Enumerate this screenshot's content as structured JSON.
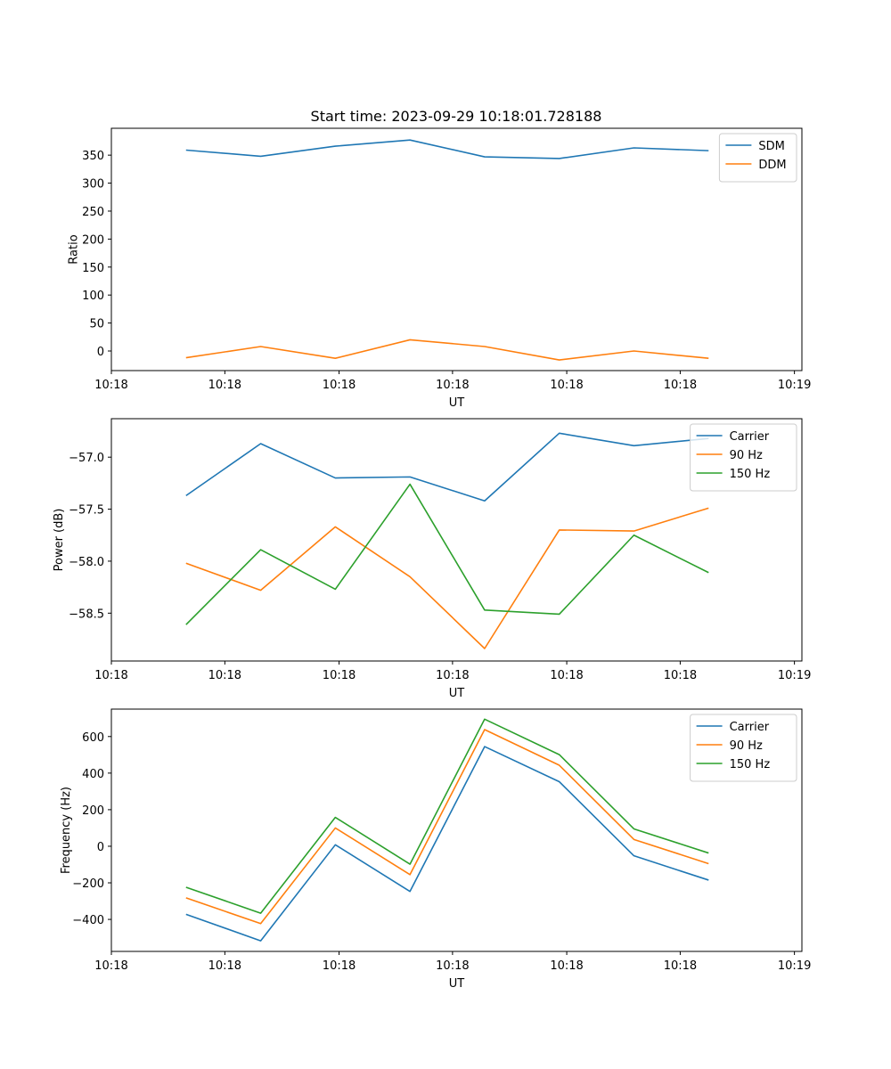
{
  "figure": {
    "title": "Start time: 2023-09-29 10:18:01.728188"
  },
  "colors": {
    "blue": "#1f77b4",
    "orange": "#ff7f0e",
    "green": "#2ca02c"
  },
  "chart_data": [
    {
      "type": "line",
      "title": "Start time: 2023-09-29 10:18:01.728188",
      "xlabel": "UT",
      "ylabel": "Ratio",
      "x": [
        1,
        2,
        3,
        4,
        5,
        6,
        7,
        8
      ],
      "xlim": [
        0,
        9.25
      ],
      "xticks": [
        0,
        1.52,
        3.05,
        4.57,
        6.1,
        7.62,
        9.15
      ],
      "xtick_labels": [
        "10:18",
        "10:18",
        "10:18",
        "10:18",
        "10:18",
        "10:18",
        "10:19"
      ],
      "ylim": [
        -35,
        398
      ],
      "yticks": [
        0,
        50,
        100,
        150,
        200,
        250,
        300,
        350
      ],
      "ytick_labels": [
        "0",
        "50",
        "100",
        "150",
        "200",
        "250",
        "300",
        "350"
      ],
      "legend_loc": "upper-right",
      "series": [
        {
          "name": "SDM",
          "color": "#1f77b4",
          "values": [
            359,
            348,
            366,
            377,
            347,
            344,
            363,
            358
          ]
        },
        {
          "name": "DDM",
          "color": "#ff7f0e",
          "values": [
            -12,
            8,
            -13,
            20,
            8,
            -16,
            0,
            -13
          ]
        }
      ]
    },
    {
      "type": "line",
      "title": "",
      "xlabel": "UT",
      "ylabel": "Power (dB)",
      "x": [
        1,
        2,
        3,
        4,
        5,
        6,
        7,
        8
      ],
      "xlim": [
        0,
        9.25
      ],
      "xticks": [
        0,
        1.52,
        3.05,
        4.57,
        6.1,
        7.62,
        9.15
      ],
      "xtick_labels": [
        "10:18",
        "10:18",
        "10:18",
        "10:18",
        "10:18",
        "10:18",
        "10:19"
      ],
      "ylim": [
        -58.96,
        -56.63
      ],
      "yticks": [
        -58.5,
        -58.0,
        -57.5,
        -57.0
      ],
      "ytick_labels": [
        "−58.5",
        "−58.0",
        "−57.5",
        "−57.0"
      ],
      "legend_loc": "upper-right",
      "series": [
        {
          "name": "Carrier",
          "color": "#1f77b4",
          "values": [
            -57.37,
            -56.87,
            -57.2,
            -57.19,
            -57.42,
            -56.77,
            -56.89,
            -56.82
          ]
        },
        {
          "name": "90 Hz",
          "color": "#ff7f0e",
          "values": [
            -58.02,
            -58.28,
            -57.67,
            -58.15,
            -58.84,
            -57.7,
            -57.71,
            -57.49
          ]
        },
        {
          "name": "150 Hz",
          "color": "#2ca02c",
          "values": [
            -58.61,
            -57.89,
            -58.27,
            -57.26,
            -58.47,
            -58.51,
            -57.75,
            -58.11
          ]
        }
      ]
    },
    {
      "type": "line",
      "title": "",
      "xlabel": "UT",
      "ylabel": "Frequency (Hz)",
      "x": [
        1,
        2,
        3,
        4,
        5,
        6,
        7,
        8
      ],
      "xlim": [
        0,
        9.25
      ],
      "xticks": [
        0,
        1.52,
        3.05,
        4.57,
        6.1,
        7.62,
        9.15
      ],
      "xtick_labels": [
        "10:18",
        "10:18",
        "10:18",
        "10:18",
        "10:18",
        "10:18",
        "10:19"
      ],
      "ylim": [
        -575,
        750
      ],
      "yticks": [
        -400,
        -200,
        0,
        200,
        400,
        600
      ],
      "ytick_labels": [
        "−400",
        "−200",
        "0",
        "200",
        "400",
        "600"
      ],
      "legend_loc": "upper-right",
      "series": [
        {
          "name": "Carrier",
          "color": "#1f77b4",
          "values": [
            -372,
            -517,
            8,
            -247,
            545,
            353,
            -52,
            -185
          ]
        },
        {
          "name": "90 Hz",
          "color": "#ff7f0e",
          "values": [
            -282,
            -423,
            100,
            -155,
            638,
            443,
            37,
            -95
          ]
        },
        {
          "name": "150 Hz",
          "color": "#2ca02c",
          "values": [
            -224,
            -366,
            158,
            -98,
            695,
            501,
            95,
            -37
          ]
        }
      ]
    }
  ]
}
